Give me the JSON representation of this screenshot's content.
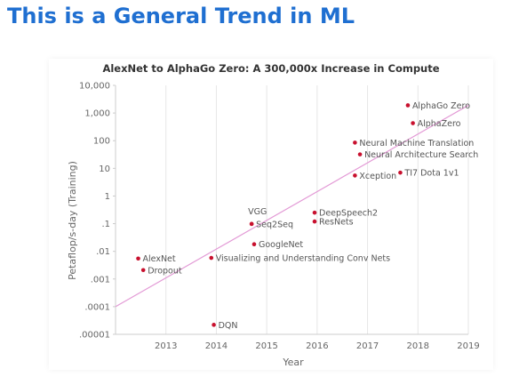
{
  "slide": {
    "title": "This is a General Trend in ML"
  },
  "chart_data": {
    "type": "scatter",
    "title": "AlexNet to AlphaGo Zero: A 300,000x Increase in Compute",
    "xlabel": "Year",
    "ylabel": "Petaflop/s-day (Training)",
    "xlim": [
      2012.0,
      2019.0
    ],
    "ylim": [
      1e-05,
      10000
    ],
    "yscale": "log",
    "grid": "vertical",
    "x_ticks": [
      "2013",
      "2014",
      "2015",
      "2016",
      "2017",
      "2018",
      "2019"
    ],
    "y_ticks": [
      {
        "value": 10000,
        "label": "10,000"
      },
      {
        "value": 1000,
        "label": "1,000"
      },
      {
        "value": 100,
        "label": "100"
      },
      {
        "value": 10,
        "label": "10"
      },
      {
        "value": 1,
        "label": "1"
      },
      {
        "value": 0.1,
        "label": ".1"
      },
      {
        "value": 0.01,
        "label": ".01"
      },
      {
        "value": 0.001,
        "label": ".001"
      },
      {
        "value": 0.0001,
        "label": ".0001"
      },
      {
        "value": 1e-05,
        "label": ".00001"
      }
    ],
    "points": [
      {
        "name": "AlexNet",
        "x": 2012.45,
        "y": 0.0055,
        "label_pos": "right"
      },
      {
        "name": "Dropout",
        "x": 2012.55,
        "y": 0.0021,
        "label_pos": "right"
      },
      {
        "name": "DQN",
        "x": 2013.95,
        "y": 2.2e-05,
        "label_pos": "right"
      },
      {
        "name": "Visualizing and Understanding Conv Nets",
        "x": 2013.9,
        "y": 0.0058,
        "label_pos": "right"
      },
      {
        "name": "VGG",
        "x": 2014.7,
        "y": 0.098,
        "label_pos": "above"
      },
      {
        "name": "Seq2Seq",
        "x": 2014.7,
        "y": 0.098,
        "label_pos": "right"
      },
      {
        "name": "GoogleNet",
        "x": 2014.75,
        "y": 0.018,
        "label_pos": "right"
      },
      {
        "name": "DeepSpeech2",
        "x": 2015.95,
        "y": 0.25,
        "label_pos": "right"
      },
      {
        "name": "ResNets",
        "x": 2015.95,
        "y": 0.12,
        "label_pos": "right"
      },
      {
        "name": "Neural Machine Translation",
        "x": 2016.75,
        "y": 85,
        "label_pos": "right"
      },
      {
        "name": "Neural Architecture Search",
        "x": 2016.85,
        "y": 32,
        "label_pos": "right"
      },
      {
        "name": "Xception",
        "x": 2016.75,
        "y": 5.5,
        "label_pos": "right"
      },
      {
        "name": "TI7 Dota 1v1",
        "x": 2017.65,
        "y": 7,
        "label_pos": "right"
      },
      {
        "name": "AlphaGo Zero",
        "x": 2017.8,
        "y": 1900,
        "label_pos": "right"
      },
      {
        "name": "AlphaZero",
        "x": 2017.9,
        "y": 430,
        "label_pos": "right"
      }
    ],
    "trend_line": {
      "x": [
        2012.0,
        2019.0
      ],
      "y": [
        0.0001,
        1900
      ]
    },
    "colors": {
      "point": "#c8102e",
      "trend": "#e39ad6",
      "grid": "#e6e6e6",
      "title": "#1f6fd1"
    }
  }
}
